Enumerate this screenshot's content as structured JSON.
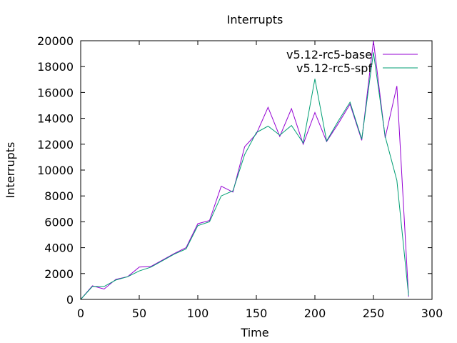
{
  "chart_data": {
    "type": "line",
    "title": "Interrupts",
    "xlabel": "Time",
    "ylabel": "Interrupts",
    "xlim": [
      0,
      300
    ],
    "ylim": [
      0,
      20000
    ],
    "xticks": [
      0,
      50,
      100,
      150,
      200,
      250,
      300
    ],
    "yticks": [
      0,
      2000,
      4000,
      6000,
      8000,
      10000,
      12000,
      14000,
      16000,
      18000,
      20000
    ],
    "grid": false,
    "legend_position": "top-right",
    "x": [
      0,
      10,
      20,
      30,
      40,
      50,
      60,
      70,
      80,
      90,
      100,
      110,
      120,
      130,
      140,
      150,
      160,
      170,
      180,
      190,
      200,
      210,
      220,
      230,
      240,
      250,
      260,
      270,
      280
    ],
    "series": [
      {
        "name": "v5.12-rc5-base",
        "color": "#9400d3",
        "values": [
          0,
          1050,
          800,
          1550,
          1750,
          2500,
          2550,
          3050,
          3550,
          4000,
          5850,
          6100,
          8750,
          8300,
          11800,
          12800,
          14850,
          12600,
          14750,
          12000,
          14450,
          12200,
          13600,
          15100,
          12300,
          20000,
          12500,
          16500,
          200
        ]
      },
      {
        "name": "v5.12-rc5-spf",
        "color": "#009e73",
        "values": [
          0,
          1000,
          1000,
          1500,
          1750,
          2200,
          2500,
          3000,
          3500,
          3900,
          5700,
          6000,
          8000,
          8400,
          11200,
          12900,
          13400,
          12700,
          13450,
          12100,
          17050,
          12250,
          13800,
          15250,
          12400,
          19100,
          12600,
          9200,
          300
        ]
      }
    ]
  }
}
